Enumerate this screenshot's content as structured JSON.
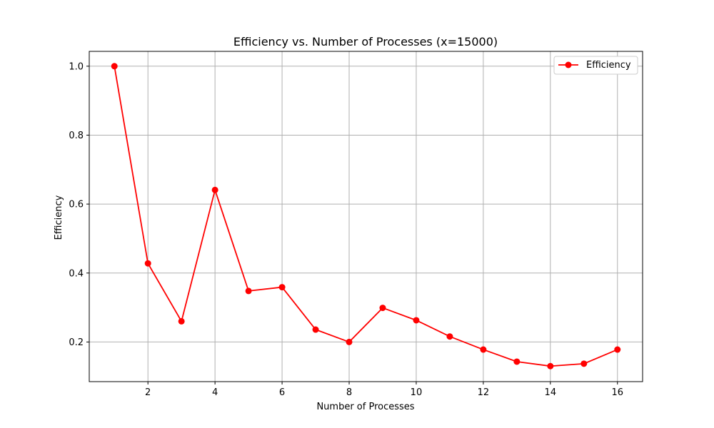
{
  "chart_data": {
    "type": "line",
    "title": "Efficiency vs. Number of Processes (x=15000)",
    "xlabel": "Number of Processes",
    "ylabel": "Efficiency",
    "xlim": [
      0.25,
      16.75
    ],
    "ylim": [
      0.085,
      1.043
    ],
    "xticks": [
      2,
      4,
      6,
      8,
      10,
      12,
      14,
      16
    ],
    "yticks": [
      0.2,
      0.4,
      0.6,
      0.8,
      1.0
    ],
    "ytick_labels": [
      "0.2",
      "0.4",
      "0.6",
      "0.8",
      "1.0"
    ],
    "grid": true,
    "legend_position": "top-right",
    "series": [
      {
        "name": "Efficiency",
        "color": "#ff0000",
        "marker": "circle",
        "x": [
          1,
          2,
          3,
          4,
          5,
          6,
          7,
          8,
          9,
          10,
          11,
          12,
          13,
          14,
          15,
          16
        ],
        "values": [
          1.0,
          0.428,
          0.26,
          0.641,
          0.348,
          0.359,
          0.236,
          0.2,
          0.299,
          0.263,
          0.216,
          0.178,
          0.143,
          0.13,
          0.137,
          0.178
        ]
      }
    ]
  }
}
